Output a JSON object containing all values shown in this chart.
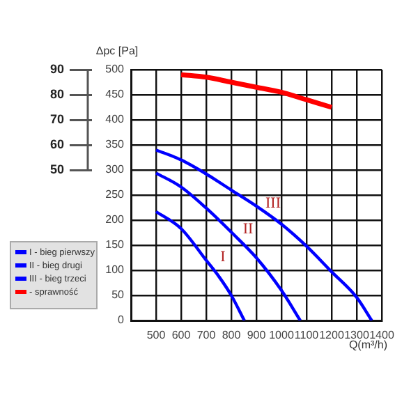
{
  "chart_data": {
    "type": "line",
    "xlabel": "Q(m³/h)",
    "ylabel": "Δpc [Pa]",
    "xlim": [
      400,
      1400
    ],
    "xticks": [
      500,
      600,
      700,
      800,
      900,
      1000,
      1100,
      1200,
      1300,
      1400
    ],
    "ylim": [
      0,
      500
    ],
    "yticks": [
      0,
      50,
      100,
      150,
      200,
      250,
      300,
      350,
      400,
      450,
      500
    ],
    "y2lim": [
      -10,
      90
    ],
    "y2ticks": [
      50,
      60,
      70,
      80,
      90
    ],
    "grid": true,
    "legend": "left",
    "marker": "none",
    "series": [
      {
        "name": "I - bieg pierwszy",
        "color": "#0000ff",
        "x": [
          500,
          600,
          700,
          750,
          800,
          852
        ],
        "values": [
          217,
          183,
          120,
          88,
          50,
          0
        ]
      },
      {
        "name": "II - bieg drugi",
        "color": "#0000ff",
        "x": [
          500,
          600,
          700,
          800,
          900,
          1000,
          1075
        ],
        "values": [
          294,
          266,
          224,
          176,
          125,
          60,
          0
        ]
      },
      {
        "name": "III - bieg trzeci",
        "color": "#0000ff",
        "x": [
          500,
          600,
          700,
          800,
          900,
          1000,
          1100,
          1200,
          1300,
          1360
        ],
        "values": [
          340,
          320,
          292,
          260,
          228,
          192,
          148,
          97,
          46,
          0
        ]
      },
      {
        "name": "- sprawność",
        "color": "#ff0000",
        "axis": "y2",
        "x": [
          600,
          700,
          800,
          900,
          1000,
          1100,
          1200
        ],
        "values": [
          88,
          87,
          85,
          83,
          81,
          78,
          75
        ]
      }
    ],
    "annotations": [
      "I",
      "II",
      "III"
    ]
  }
}
